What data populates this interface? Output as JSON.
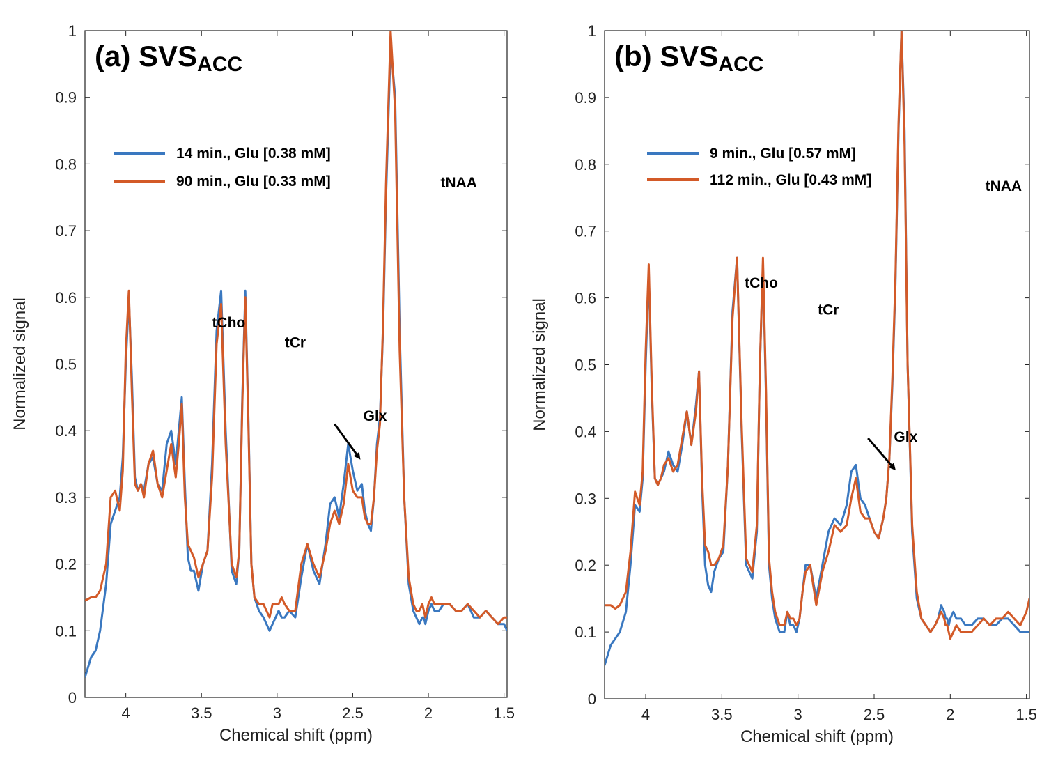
{
  "colors": {
    "series1": "#3a78c0",
    "series2": "#d35a28",
    "axis": "#222222"
  },
  "chart_data": [
    {
      "type": "line",
      "title": "(a) SVS",
      "title_subscript": "ACC",
      "xlabel": "Chemical shift (ppm)",
      "ylabel": "Normalized signal",
      "xlim": [
        4.27,
        1.48
      ],
      "ylim": [
        0,
        1.0
      ],
      "xticks": [
        4,
        3.5,
        3,
        2.5,
        2,
        1.5
      ],
      "xtick_labels": [
        "4",
        "3.5",
        "3",
        "2.5",
        "2",
        "1.5"
      ],
      "yticks": [
        0,
        0.1,
        0.2,
        0.3,
        0.4,
        0.5,
        0.6,
        0.7,
        0.8,
        0.9,
        1
      ],
      "ytick_labels": [
        "0",
        "0.1",
        "0.2",
        "0.3",
        "0.4",
        "0.5",
        "0.6",
        "0.7",
        "0.8",
        "0.9",
        "1"
      ],
      "annotations": [
        {
          "text": "tCho",
          "x": 3.43,
          "y": 0.555
        },
        {
          "text": "tCr",
          "x": 2.95,
          "y": 0.525
        },
        {
          "text": "Glx",
          "x": 2.43,
          "y": 0.415
        },
        {
          "text": "tNAA",
          "x": 1.92,
          "y": 0.765
        }
      ],
      "arrow": {
        "from": [
          2.62,
          0.41
        ],
        "to": [
          2.46,
          0.36
        ]
      },
      "series": [
        {
          "name": "14 min., Glu [0.38 mM]",
          "x": [
            4.27,
            4.23,
            4.2,
            4.17,
            4.13,
            4.1,
            4.07,
            4.04,
            4.02,
            4,
            3.98,
            3.96,
            3.94,
            3.92,
            3.9,
            3.88,
            3.85,
            3.82,
            3.79,
            3.76,
            3.73,
            3.7,
            3.67,
            3.65,
            3.63,
            3.61,
            3.59,
            3.57,
            3.55,
            3.52,
            3.49,
            3.46,
            3.43,
            3.4,
            3.37,
            3.34,
            3.3,
            3.27,
            3.25,
            3.23,
            3.21,
            3.19,
            3.17,
            3.15,
            3.12,
            3.09,
            3.07,
            3.05,
            3.03,
            3.01,
            2.99,
            2.97,
            2.95,
            2.92,
            2.88,
            2.84,
            2.8,
            2.76,
            2.72,
            2.68,
            2.65,
            2.62,
            2.59,
            2.56,
            2.53,
            2.5,
            2.47,
            2.44,
            2.42,
            2.4,
            2.38,
            2.36,
            2.34,
            2.32,
            2.3,
            2.28,
            2.25,
            2.22,
            2.19,
            2.16,
            2.13,
            2.1,
            2.08,
            2.06,
            2.04,
            2.03,
            2.02,
            2.01,
            2.0,
            1.98,
            1.96,
            1.93,
            1.9,
            1.86,
            1.82,
            1.78,
            1.74,
            1.7,
            1.66,
            1.62,
            1.58,
            1.54,
            1.5,
            1.48
          ],
          "values": [
            0.03,
            0.06,
            0.07,
            0.1,
            0.17,
            0.26,
            0.28,
            0.3,
            0.36,
            0.5,
            0.6,
            0.48,
            0.33,
            0.31,
            0.32,
            0.31,
            0.35,
            0.36,
            0.32,
            0.31,
            0.38,
            0.4,
            0.35,
            0.4,
            0.45,
            0.32,
            0.21,
            0.19,
            0.19,
            0.16,
            0.2,
            0.22,
            0.35,
            0.55,
            0.61,
            0.4,
            0.19,
            0.17,
            0.22,
            0.45,
            0.61,
            0.42,
            0.2,
            0.15,
            0.13,
            0.12,
            0.11,
            0.1,
            0.11,
            0.12,
            0.13,
            0.12,
            0.12,
            0.13,
            0.12,
            0.18,
            0.23,
            0.19,
            0.17,
            0.23,
            0.29,
            0.3,
            0.27,
            0.32,
            0.38,
            0.34,
            0.31,
            0.32,
            0.28,
            0.26,
            0.25,
            0.3,
            0.38,
            0.42,
            0.55,
            0.75,
            0.98,
            0.9,
            0.55,
            0.3,
            0.17,
            0.13,
            0.12,
            0.11,
            0.12,
            0.12,
            0.11,
            0.12,
            0.13,
            0.14,
            0.13,
            0.13,
            0.14,
            0.14,
            0.13,
            0.13,
            0.14,
            0.12,
            0.12,
            0.13,
            0.12,
            0.11,
            0.11,
            0.1
          ]
        },
        {
          "name": "90 min., Glu [0.33 mM]",
          "x": [
            4.27,
            4.23,
            4.2,
            4.17,
            4.13,
            4.1,
            4.07,
            4.04,
            4.02,
            4,
            3.98,
            3.96,
            3.94,
            3.92,
            3.9,
            3.88,
            3.85,
            3.82,
            3.79,
            3.76,
            3.73,
            3.7,
            3.67,
            3.65,
            3.63,
            3.61,
            3.59,
            3.57,
            3.55,
            3.52,
            3.49,
            3.46,
            3.43,
            3.4,
            3.37,
            3.34,
            3.3,
            3.27,
            3.25,
            3.23,
            3.21,
            3.19,
            3.17,
            3.15,
            3.12,
            3.09,
            3.07,
            3.05,
            3.03,
            3.01,
            2.99,
            2.97,
            2.95,
            2.92,
            2.88,
            2.84,
            2.8,
            2.76,
            2.72,
            2.68,
            2.65,
            2.62,
            2.59,
            2.56,
            2.53,
            2.5,
            2.47,
            2.44,
            2.42,
            2.4,
            2.38,
            2.36,
            2.34,
            2.32,
            2.3,
            2.28,
            2.25,
            2.22,
            2.19,
            2.16,
            2.13,
            2.1,
            2.08,
            2.06,
            2.04,
            2.03,
            2.02,
            2.01,
            2.0,
            1.98,
            1.96,
            1.93,
            1.9,
            1.86,
            1.82,
            1.78,
            1.74,
            1.7,
            1.66,
            1.62,
            1.58,
            1.54,
            1.5,
            1.48
          ],
          "values": [
            0.145,
            0.15,
            0.15,
            0.16,
            0.2,
            0.3,
            0.31,
            0.28,
            0.34,
            0.52,
            0.61,
            0.46,
            0.32,
            0.31,
            0.32,
            0.3,
            0.35,
            0.37,
            0.32,
            0.3,
            0.34,
            0.38,
            0.33,
            0.38,
            0.44,
            0.3,
            0.23,
            0.22,
            0.21,
            0.18,
            0.2,
            0.22,
            0.33,
            0.53,
            0.59,
            0.38,
            0.2,
            0.18,
            0.22,
            0.44,
            0.6,
            0.41,
            0.2,
            0.15,
            0.14,
            0.14,
            0.13,
            0.12,
            0.14,
            0.14,
            0.14,
            0.15,
            0.14,
            0.13,
            0.13,
            0.2,
            0.23,
            0.2,
            0.18,
            0.22,
            0.26,
            0.28,
            0.26,
            0.29,
            0.35,
            0.31,
            0.3,
            0.3,
            0.27,
            0.26,
            0.26,
            0.3,
            0.37,
            0.41,
            0.56,
            0.77,
            1.0,
            0.88,
            0.52,
            0.3,
            0.18,
            0.14,
            0.13,
            0.13,
            0.14,
            0.13,
            0.12,
            0.13,
            0.14,
            0.15,
            0.14,
            0.14,
            0.14,
            0.14,
            0.13,
            0.13,
            0.14,
            0.13,
            0.12,
            0.13,
            0.12,
            0.11,
            0.12,
            0.12
          ]
        }
      ]
    },
    {
      "type": "line",
      "title": "(b) SVS",
      "title_subscript": "ACC",
      "xlabel": "Chemical shift (ppm)",
      "ylabel": "Normalized signal",
      "xlim": [
        4.27,
        1.48
      ],
      "ylim": [
        0,
        1.0
      ],
      "xticks": [
        4,
        3.5,
        3,
        2.5,
        2,
        1.5
      ],
      "xtick_labels": [
        "4",
        "3.5",
        "3",
        "2.5",
        "2",
        "1.5"
      ],
      "yticks": [
        0,
        0.1,
        0.2,
        0.3,
        0.4,
        0.5,
        0.6,
        0.7,
        0.8,
        0.9,
        1
      ],
      "ytick_labels": [
        "0",
        "0.1",
        "0.2",
        "0.3",
        "0.4",
        "0.5",
        "0.6",
        "0.7",
        "0.8",
        "0.9",
        "1"
      ],
      "annotations": [
        {
          "text": "tCho",
          "x": 3.35,
          "y": 0.615
        },
        {
          "text": "tCr",
          "x": 2.87,
          "y": 0.575
        },
        {
          "text": "Glx",
          "x": 2.37,
          "y": 0.385
        },
        {
          "text": "tNAA",
          "x": 1.77,
          "y": 0.76
        }
      ],
      "arrow": {
        "from": [
          2.54,
          0.39
        ],
        "to": [
          2.37,
          0.345
        ]
      },
      "series": [
        {
          "name": "9 min., Glu [0.57 mM]",
          "x": [
            4.27,
            4.23,
            4.2,
            4.17,
            4.13,
            4.1,
            4.07,
            4.04,
            4.02,
            4,
            3.98,
            3.96,
            3.94,
            3.92,
            3.9,
            3.88,
            3.85,
            3.82,
            3.79,
            3.76,
            3.73,
            3.7,
            3.67,
            3.65,
            3.63,
            3.61,
            3.59,
            3.57,
            3.55,
            3.52,
            3.49,
            3.46,
            3.43,
            3.4,
            3.37,
            3.34,
            3.3,
            3.27,
            3.25,
            3.23,
            3.21,
            3.19,
            3.17,
            3.15,
            3.12,
            3.09,
            3.07,
            3.05,
            3.03,
            3.01,
            2.99,
            2.97,
            2.95,
            2.92,
            2.88,
            2.84,
            2.8,
            2.76,
            2.72,
            2.68,
            2.65,
            2.62,
            2.59,
            2.56,
            2.53,
            2.5,
            2.47,
            2.44,
            2.42,
            2.4,
            2.38,
            2.36,
            2.34,
            2.32,
            2.3,
            2.28,
            2.25,
            2.22,
            2.19,
            2.16,
            2.13,
            2.1,
            2.08,
            2.06,
            2.04,
            2.03,
            2.02,
            2.01,
            2.0,
            1.98,
            1.96,
            1.93,
            1.9,
            1.86,
            1.82,
            1.78,
            1.74,
            1.7,
            1.66,
            1.62,
            1.58,
            1.54,
            1.5,
            1.48
          ],
          "values": [
            0.05,
            0.08,
            0.09,
            0.1,
            0.13,
            0.2,
            0.29,
            0.28,
            0.33,
            0.5,
            0.64,
            0.46,
            0.33,
            0.32,
            0.33,
            0.34,
            0.37,
            0.35,
            0.34,
            0.38,
            0.43,
            0.38,
            0.44,
            0.49,
            0.32,
            0.2,
            0.17,
            0.16,
            0.19,
            0.21,
            0.22,
            0.35,
            0.58,
            0.66,
            0.4,
            0.2,
            0.18,
            0.25,
            0.5,
            0.65,
            0.45,
            0.2,
            0.15,
            0.12,
            0.1,
            0.1,
            0.13,
            0.11,
            0.11,
            0.1,
            0.12,
            0.16,
            0.2,
            0.2,
            0.15,
            0.2,
            0.25,
            0.27,
            0.26,
            0.29,
            0.34,
            0.35,
            0.3,
            0.29,
            0.27,
            0.25,
            0.24,
            0.27,
            0.3,
            0.36,
            0.47,
            0.62,
            0.85,
            1.0,
            0.85,
            0.5,
            0.25,
            0.15,
            0.12,
            0.11,
            0.1,
            0.11,
            0.12,
            0.14,
            0.13,
            0.12,
            0.12,
            0.11,
            0.12,
            0.13,
            0.12,
            0.12,
            0.11,
            0.11,
            0.12,
            0.12,
            0.11,
            0.11,
            0.12,
            0.12,
            0.11,
            0.1,
            0.1,
            0.1
          ]
        },
        {
          "name": "112 min., Glu [0.43 mM]",
          "x": [
            4.27,
            4.23,
            4.2,
            4.17,
            4.13,
            4.1,
            4.07,
            4.04,
            4.02,
            4,
            3.98,
            3.96,
            3.94,
            3.92,
            3.9,
            3.88,
            3.85,
            3.82,
            3.79,
            3.76,
            3.73,
            3.7,
            3.67,
            3.65,
            3.63,
            3.61,
            3.59,
            3.57,
            3.55,
            3.52,
            3.49,
            3.46,
            3.43,
            3.4,
            3.37,
            3.34,
            3.3,
            3.27,
            3.25,
            3.23,
            3.21,
            3.19,
            3.17,
            3.15,
            3.12,
            3.09,
            3.07,
            3.05,
            3.03,
            3.01,
            2.99,
            2.97,
            2.95,
            2.92,
            2.88,
            2.84,
            2.8,
            2.76,
            2.72,
            2.68,
            2.65,
            2.62,
            2.59,
            2.56,
            2.53,
            2.5,
            2.47,
            2.44,
            2.42,
            2.4,
            2.38,
            2.36,
            2.34,
            2.32,
            2.3,
            2.28,
            2.25,
            2.22,
            2.19,
            2.16,
            2.13,
            2.1,
            2.08,
            2.06,
            2.04,
            2.03,
            2.02,
            2.01,
            2.0,
            1.98,
            1.96,
            1.93,
            1.9,
            1.86,
            1.82,
            1.78,
            1.74,
            1.7,
            1.66,
            1.62,
            1.58,
            1.54,
            1.5,
            1.48
          ],
          "values": [
            0.14,
            0.14,
            0.135,
            0.14,
            0.16,
            0.22,
            0.31,
            0.29,
            0.34,
            0.52,
            0.65,
            0.47,
            0.33,
            0.32,
            0.33,
            0.35,
            0.36,
            0.34,
            0.35,
            0.39,
            0.43,
            0.38,
            0.43,
            0.49,
            0.33,
            0.23,
            0.22,
            0.2,
            0.2,
            0.21,
            0.23,
            0.35,
            0.57,
            0.66,
            0.41,
            0.21,
            0.19,
            0.26,
            0.5,
            0.66,
            0.46,
            0.21,
            0.16,
            0.13,
            0.11,
            0.11,
            0.13,
            0.12,
            0.12,
            0.11,
            0.12,
            0.16,
            0.19,
            0.2,
            0.14,
            0.19,
            0.22,
            0.26,
            0.25,
            0.26,
            0.3,
            0.33,
            0.28,
            0.27,
            0.27,
            0.25,
            0.24,
            0.27,
            0.3,
            0.36,
            0.48,
            0.63,
            0.86,
            1.0,
            0.83,
            0.5,
            0.26,
            0.16,
            0.12,
            0.11,
            0.1,
            0.11,
            0.12,
            0.13,
            0.12,
            0.11,
            0.11,
            0.1,
            0.09,
            0.1,
            0.11,
            0.1,
            0.1,
            0.1,
            0.11,
            0.12,
            0.11,
            0.12,
            0.12,
            0.13,
            0.12,
            0.11,
            0.13,
            0.15
          ]
        }
      ]
    }
  ]
}
